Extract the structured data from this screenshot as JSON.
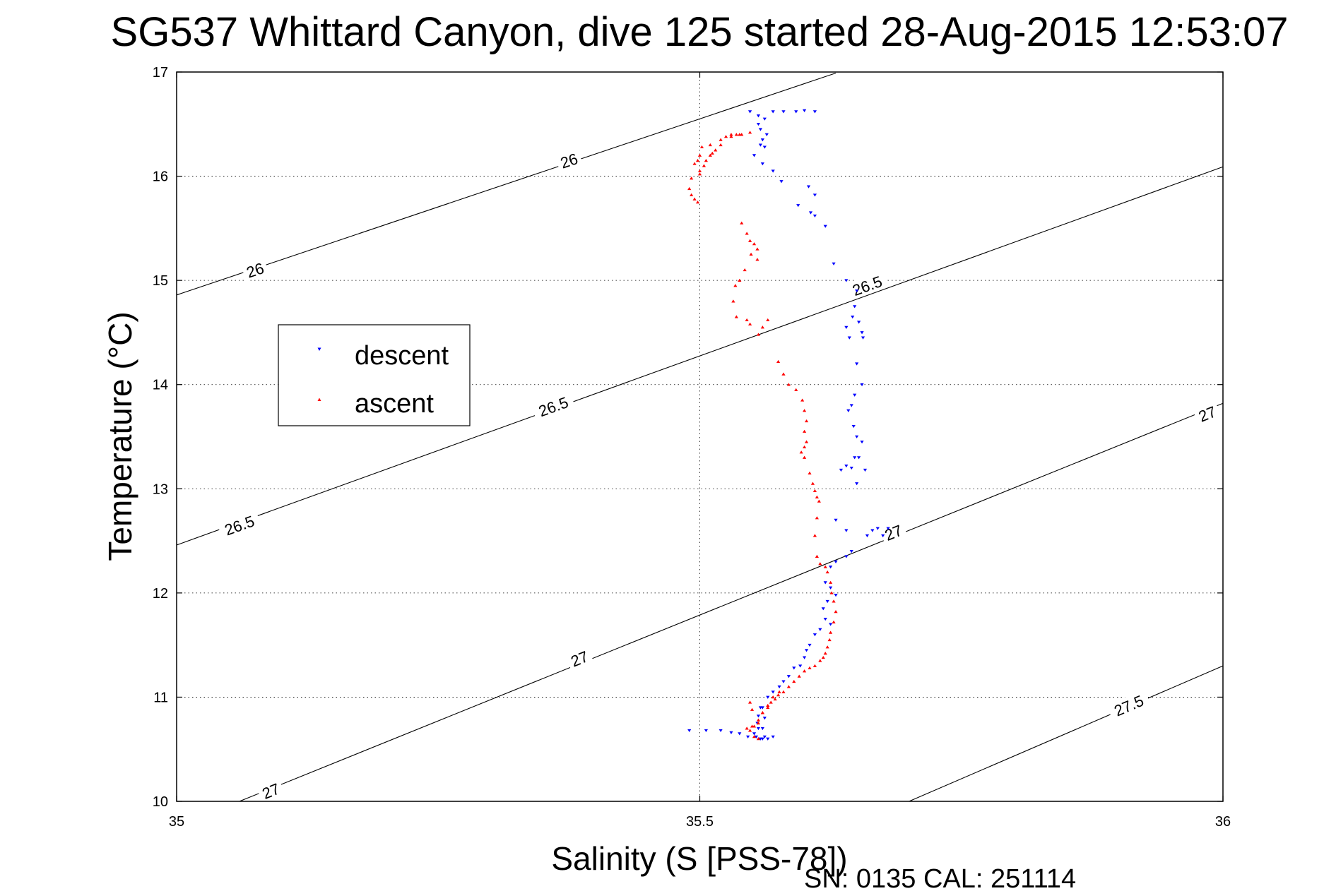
{
  "chart_data": {
    "type": "scatter",
    "title": "SG537 Whittard Canyon, dive 125 started 28-Aug-2015 12:53:07",
    "xlabel": "Salinity (S [PSS-78])",
    "ylabel": "Temperature (°C)",
    "xlim": [
      35,
      36
    ],
    "ylim": [
      10,
      17
    ],
    "xticks": [
      "35",
      "35.5",
      "36"
    ],
    "yticks": [
      "10",
      "11",
      "12",
      "13",
      "14",
      "15",
      "16",
      "17"
    ],
    "grid": true,
    "legend": {
      "placement": "left",
      "entries": [
        "descent",
        "ascent"
      ]
    },
    "footer": "SN: 0135  CAL: 251114",
    "colors": {
      "descent": "#0000ff",
      "ascent": "#ff0000",
      "isopycnal": "#000000",
      "grid": "#000000"
    },
    "isopycnals": [
      {
        "label": "26",
        "x": [
          35,
          35.63
        ],
        "y": [
          14.86,
          16.99
        ],
        "label_at": [
          [
            35.075,
            15.1
          ],
          [
            35.375,
            16.15
          ]
        ]
      },
      {
        "label": "26.5",
        "x": [
          35,
          36
        ],
        "y": [
          12.46,
          16.09
        ],
        "label_at": [
          [
            35.06,
            12.65
          ],
          [
            35.36,
            13.79
          ],
          [
            35.66,
            14.95
          ]
        ]
      },
      {
        "label": "27",
        "x": [
          35.06,
          36
        ],
        "y": [
          10.0,
          13.82
        ],
        "label_at": [
          [
            35.09,
            10.1
          ],
          [
            35.385,
            11.37
          ],
          [
            35.685,
            12.58
          ],
          [
            35.985,
            13.72
          ]
        ]
      },
      {
        "label": "27.5",
        "x": [
          35.7,
          36
        ],
        "y": [
          10.0,
          11.3
        ],
        "label_at": [
          [
            35.91,
            10.92
          ]
        ]
      }
    ],
    "series": [
      {
        "name": "descent",
        "marker": "triangle-down",
        "x": [
          35.548,
          35.556,
          35.562,
          35.57,
          35.58,
          35.592,
          35.6,
          35.61,
          35.556,
          35.558,
          35.564,
          35.56,
          35.558,
          35.562,
          35.552,
          35.56,
          35.57,
          35.578,
          35.594,
          35.604,
          35.606,
          35.61,
          35.61,
          35.62,
          35.628,
          35.64,
          35.65,
          35.648,
          35.652,
          35.655,
          35.656,
          35.646,
          35.64,
          35.643,
          35.65,
          35.655,
          35.648,
          35.645,
          35.642,
          35.647,
          35.65,
          35.655,
          35.648,
          35.645,
          35.652,
          35.658,
          35.65,
          35.64,
          35.635,
          35.63,
          35.64,
          35.66,
          35.665,
          35.67,
          35.675,
          35.68,
          35.645,
          35.64,
          35.63,
          35.625,
          35.62,
          35.625,
          35.63,
          35.622,
          35.618,
          35.62,
          35.625,
          35.615,
          35.61,
          35.605,
          35.602,
          35.6,
          35.596,
          35.59,
          35.585,
          35.58,
          35.576,
          35.57,
          35.565,
          35.56,
          35.556,
          35.555,
          35.556,
          35.552,
          35.554,
          35.558,
          35.562,
          35.56,
          35.562,
          35.558,
          35.56,
          35.565,
          35.57,
          35.546,
          35.538,
          35.53,
          35.52,
          35.506,
          35.49
        ],
        "y": [
          16.62,
          16.58,
          16.55,
          16.62,
          16.62,
          16.62,
          16.63,
          16.62,
          16.5,
          16.45,
          16.4,
          16.35,
          16.3,
          16.28,
          16.2,
          16.12,
          16.05,
          15.95,
          15.72,
          15.9,
          15.65,
          15.82,
          15.62,
          15.52,
          15.16,
          15.0,
          14.9,
          14.75,
          14.6,
          14.5,
          14.45,
          14.65,
          14.55,
          14.45,
          14.2,
          14.0,
          13.9,
          13.8,
          13.75,
          13.6,
          13.5,
          13.45,
          13.3,
          13.2,
          13.3,
          13.18,
          13.05,
          13.22,
          13.18,
          12.7,
          12.6,
          12.55,
          12.6,
          12.62,
          12.55,
          12.62,
          12.4,
          12.35,
          12.3,
          12.25,
          12.1,
          12.05,
          11.98,
          11.92,
          11.85,
          11.75,
          11.7,
          11.65,
          11.6,
          11.5,
          11.45,
          11.38,
          11.3,
          11.28,
          11.2,
          11.15,
          11.1,
          11.05,
          11.0,
          10.9,
          10.82,
          10.75,
          10.7,
          10.65,
          10.62,
          10.6,
          10.62,
          10.7,
          10.8,
          10.9,
          10.6,
          10.6,
          10.62,
          10.62,
          10.65,
          10.66,
          10.68,
          10.68,
          10.68
        ]
      },
      {
        "name": "ascent",
        "marker": "triangle-up",
        "x": [
          35.54,
          35.548,
          35.53,
          35.52,
          35.51,
          35.502,
          35.5,
          35.498,
          35.495,
          35.5,
          35.492,
          35.49,
          35.492,
          35.495,
          35.498,
          35.5,
          35.504,
          35.506,
          35.51,
          35.512,
          35.515,
          35.52,
          35.525,
          35.53,
          35.535,
          35.538,
          35.54,
          35.545,
          35.548,
          35.552,
          35.555,
          35.549,
          35.555,
          35.543,
          35.538,
          35.534,
          35.532,
          35.535,
          35.545,
          35.548,
          35.556,
          35.56,
          35.565,
          35.575,
          35.58,
          35.585,
          35.592,
          35.598,
          35.6,
          35.602,
          35.6,
          35.602,
          35.6,
          35.597,
          35.6,
          35.605,
          35.608,
          35.61,
          35.612,
          35.614,
          35.612,
          35.61,
          35.612,
          35.615,
          35.62,
          35.622,
          35.625,
          35.626,
          35.628,
          35.63,
          35.628,
          35.625,
          35.624,
          35.622,
          35.62,
          35.618,
          35.615,
          35.61,
          35.605,
          35.6,
          35.595,
          35.59,
          35.585,
          35.58,
          35.575,
          35.572,
          35.568,
          35.565,
          35.56,
          35.556,
          35.552,
          35.548,
          35.552,
          35.556,
          35.55,
          35.548,
          35.545,
          35.55,
          35.556,
          35.56,
          35.565,
          35.57,
          35.576
        ],
        "y": [
          16.4,
          16.42,
          16.38,
          16.35,
          16.3,
          16.28,
          16.2,
          16.15,
          16.12,
          16.02,
          15.98,
          15.88,
          15.82,
          15.78,
          15.75,
          16.05,
          16.1,
          16.15,
          16.2,
          16.22,
          16.25,
          16.3,
          16.38,
          16.4,
          16.4,
          16.4,
          15.55,
          15.45,
          15.38,
          15.35,
          15.3,
          15.25,
          15.2,
          15.1,
          15.0,
          14.95,
          14.8,
          14.65,
          14.62,
          14.58,
          14.48,
          14.55,
          14.62,
          14.22,
          14.1,
          14.0,
          13.95,
          13.85,
          13.75,
          13.65,
          13.55,
          13.45,
          13.4,
          13.35,
          13.3,
          13.15,
          13.05,
          12.98,
          12.92,
          12.88,
          12.72,
          12.55,
          12.35,
          12.28,
          12.25,
          12.2,
          12.1,
          12.0,
          11.92,
          11.82,
          11.72,
          11.62,
          11.55,
          11.48,
          11.42,
          11.38,
          11.35,
          11.3,
          11.28,
          11.25,
          11.2,
          11.15,
          11.1,
          11.05,
          11.02,
          10.98,
          10.95,
          10.9,
          10.85,
          10.78,
          10.72,
          10.68,
          10.62,
          10.6,
          10.88,
          10.95,
          10.7,
          10.72,
          10.75,
          10.85,
          10.92,
          11.0,
          11.05
        ]
      }
    ]
  }
}
